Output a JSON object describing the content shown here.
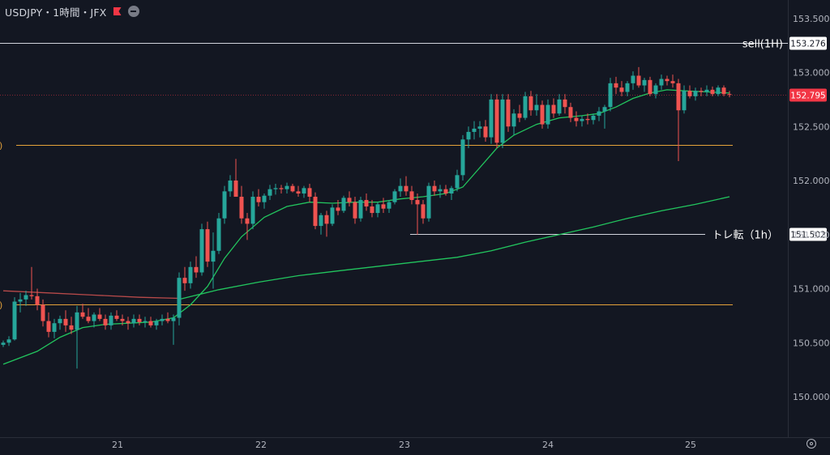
{
  "header": {
    "symbol": "USDJPY・1時間・JFX"
  },
  "colors": {
    "background": "#131722",
    "up": "#26a69a",
    "down": "#ef5350",
    "ma_fast": "#22c55e",
    "ma_slow": "#22c55e",
    "ma_red": "#b84a4a",
    "orange_line": "#e5a23a",
    "white_line": "#d1d4dc",
    "price_label": "#f23645"
  },
  "chart_data": {
    "type": "candlestick",
    "x_axis": {
      "ticks": [
        "21",
        "22",
        "23",
        "24",
        "25"
      ]
    },
    "y_axis": {
      "range": [
        149.55,
        153.7
      ],
      "ticks": [
        "153.500",
        "153.000",
        "152.500",
        "152.000",
        "151.500",
        "151.000",
        "150.500",
        "150.000"
      ]
    },
    "current_price": 152.795,
    "current_price_label": "152.795",
    "levels": [
      {
        "name": "sell(1H)",
        "price": 153.276,
        "label": "153.276",
        "color": "white"
      },
      {
        "name": "トレ転（1h）",
        "price": 151.502,
        "label": "151.502",
        "color": "white"
      },
      {
        "name": "",
        "price": 152.33,
        "label": "",
        "color": "orange"
      },
      {
        "name": "",
        "price": 150.855,
        "label": "",
        "color": "orange"
      }
    ],
    "candles": [
      [
        150.48,
        150.52,
        150.46,
        150.5
      ],
      [
        150.5,
        150.56,
        150.47,
        150.53
      ],
      [
        150.53,
        150.92,
        150.52,
        150.88
      ],
      [
        150.88,
        150.96,
        150.78,
        150.9
      ],
      [
        150.9,
        150.98,
        150.84,
        150.94
      ],
      [
        150.94,
        151.2,
        150.9,
        150.93
      ],
      [
        150.93,
        151.0,
        150.8,
        150.85
      ],
      [
        150.85,
        150.9,
        150.65,
        150.7
      ],
      [
        150.7,
        150.78,
        150.55,
        150.6
      ],
      [
        150.6,
        150.72,
        150.54,
        150.68
      ],
      [
        150.68,
        150.75,
        150.62,
        150.72
      ],
      [
        150.72,
        150.8,
        150.6,
        150.66
      ],
      [
        150.66,
        150.74,
        150.58,
        150.62
      ],
      [
        150.62,
        150.84,
        150.26,
        150.78
      ],
      [
        150.78,
        150.86,
        150.72,
        150.74
      ],
      [
        150.74,
        150.82,
        150.68,
        150.7
      ],
      [
        150.7,
        150.78,
        150.64,
        150.76
      ],
      [
        150.76,
        150.82,
        150.7,
        150.72
      ],
      [
        150.72,
        150.76,
        150.62,
        150.66
      ],
      [
        150.66,
        150.78,
        150.62,
        150.75
      ],
      [
        150.75,
        150.8,
        150.7,
        150.72
      ],
      [
        150.72,
        150.76,
        150.66,
        150.7
      ],
      [
        150.7,
        150.74,
        150.62,
        150.68
      ],
      [
        150.68,
        150.76,
        150.64,
        150.72
      ],
      [
        150.72,
        150.76,
        150.66,
        150.69
      ],
      [
        150.69,
        150.74,
        150.64,
        150.7
      ],
      [
        150.7,
        150.74,
        150.64,
        150.66
      ],
      [
        150.66,
        150.72,
        150.62,
        150.7
      ],
      [
        150.7,
        150.76,
        150.66,
        150.72
      ],
      [
        150.72,
        150.78,
        150.68,
        150.7
      ],
      [
        150.7,
        150.76,
        150.48,
        150.73
      ],
      [
        150.73,
        151.15,
        150.66,
        151.1
      ],
      [
        151.1,
        151.2,
        150.98,
        151.05
      ],
      [
        151.05,
        151.25,
        151.0,
        151.2
      ],
      [
        151.2,
        151.3,
        151.1,
        151.15
      ],
      [
        151.15,
        151.6,
        151.12,
        151.55
      ],
      [
        151.55,
        151.62,
        151.2,
        151.25
      ],
      [
        151.25,
        151.52,
        151.0,
        151.35
      ],
      [
        151.35,
        151.7,
        151.32,
        151.65
      ],
      [
        151.65,
        151.95,
        151.6,
        151.9
      ],
      [
        151.9,
        152.05,
        151.85,
        152.0
      ],
      [
        152.0,
        152.2,
        151.85,
        151.85
      ],
      [
        151.85,
        151.95,
        151.6,
        151.65
      ],
      [
        151.65,
        151.7,
        151.45,
        151.6
      ],
      [
        151.6,
        151.9,
        151.55,
        151.85
      ],
      [
        151.85,
        151.92,
        151.76,
        151.8
      ],
      [
        151.8,
        151.88,
        151.74,
        151.86
      ],
      [
        151.86,
        151.96,
        151.82,
        151.92
      ],
      [
        151.92,
        151.97,
        151.87,
        151.93
      ],
      [
        151.93,
        151.96,
        151.88,
        151.92
      ],
      [
        151.92,
        151.98,
        151.88,
        151.95
      ],
      [
        151.95,
        151.97,
        151.89,
        151.9
      ],
      [
        151.9,
        151.95,
        151.85,
        151.88
      ],
      [
        151.88,
        151.95,
        151.84,
        151.93
      ],
      [
        151.93,
        151.97,
        151.8,
        151.85
      ],
      [
        151.85,
        151.89,
        151.55,
        151.58
      ],
      [
        151.58,
        151.7,
        151.5,
        151.68
      ],
      [
        151.68,
        151.72,
        151.48,
        151.6
      ],
      [
        151.6,
        151.78,
        151.58,
        151.75
      ],
      [
        151.75,
        151.82,
        151.68,
        151.72
      ],
      [
        151.72,
        151.86,
        151.7,
        151.84
      ],
      [
        151.84,
        151.9,
        151.76,
        151.8
      ],
      [
        151.8,
        151.85,
        151.6,
        151.65
      ],
      [
        151.65,
        151.85,
        151.62,
        151.82
      ],
      [
        151.82,
        151.88,
        151.72,
        151.76
      ],
      [
        151.76,
        151.82,
        151.66,
        151.7
      ],
      [
        151.7,
        151.8,
        151.66,
        151.78
      ],
      [
        151.78,
        151.84,
        151.7,
        151.74
      ],
      [
        151.74,
        151.82,
        151.7,
        151.8
      ],
      [
        151.8,
        151.92,
        151.78,
        151.9
      ],
      [
        151.9,
        152.02,
        151.85,
        151.95
      ],
      [
        151.95,
        152.04,
        151.86,
        151.9
      ],
      [
        151.9,
        151.95,
        151.78,
        151.82
      ],
      [
        151.82,
        151.88,
        151.5,
        151.78
      ],
      [
        151.78,
        151.82,
        151.6,
        151.65
      ],
      [
        151.65,
        151.98,
        151.62,
        151.95
      ],
      [
        151.95,
        152.0,
        151.86,
        151.9
      ],
      [
        151.9,
        151.96,
        151.84,
        151.92
      ],
      [
        151.92,
        151.96,
        151.86,
        151.88
      ],
      [
        151.88,
        151.95,
        151.82,
        151.93
      ],
      [
        151.93,
        152.1,
        151.9,
        152.05
      ],
      [
        152.05,
        152.42,
        152.0,
        152.38
      ],
      [
        152.38,
        152.5,
        152.3,
        152.45
      ],
      [
        152.45,
        152.55,
        152.38,
        152.48
      ],
      [
        152.48,
        152.55,
        152.4,
        152.5
      ],
      [
        152.5,
        152.56,
        152.36,
        152.4
      ],
      [
        152.4,
        152.8,
        152.34,
        152.75
      ],
      [
        152.75,
        152.8,
        152.3,
        152.35
      ],
      [
        152.35,
        152.8,
        152.3,
        152.75
      ],
      [
        152.75,
        152.8,
        152.45,
        152.5
      ],
      [
        152.5,
        152.66,
        152.42,
        152.62
      ],
      [
        152.62,
        152.7,
        152.54,
        152.58
      ],
      [
        152.58,
        152.82,
        152.56,
        152.78
      ],
      [
        152.78,
        152.83,
        152.6,
        152.65
      ],
      [
        152.65,
        152.8,
        152.6,
        152.7
      ],
      [
        152.7,
        152.74,
        152.48,
        152.52
      ],
      [
        152.52,
        152.75,
        152.48,
        152.7
      ],
      [
        152.7,
        152.76,
        152.58,
        152.62
      ],
      [
        152.62,
        152.8,
        152.6,
        152.75
      ],
      [
        152.75,
        152.8,
        152.62,
        152.68
      ],
      [
        152.68,
        152.72,
        152.54,
        152.58
      ],
      [
        152.58,
        152.64,
        152.5,
        152.55
      ],
      [
        152.55,
        152.6,
        152.5,
        152.57
      ],
      [
        152.57,
        152.62,
        152.52,
        152.56
      ],
      [
        152.56,
        152.62,
        152.52,
        152.6
      ],
      [
        152.6,
        152.68,
        152.55,
        152.64
      ],
      [
        152.64,
        152.7,
        152.48,
        152.68
      ],
      [
        152.68,
        152.95,
        152.64,
        152.9
      ],
      [
        152.9,
        152.96,
        152.8,
        152.86
      ],
      [
        152.86,
        152.92,
        152.78,
        152.82
      ],
      [
        152.82,
        152.92,
        152.78,
        152.9
      ],
      [
        152.9,
        153.01,
        152.84,
        152.97
      ],
      [
        152.97,
        153.05,
        152.86,
        152.88
      ],
      [
        152.88,
        152.95,
        152.82,
        152.93
      ],
      [
        152.93,
        152.96,
        152.78,
        152.8
      ],
      [
        152.8,
        152.9,
        152.76,
        152.88
      ],
      [
        152.88,
        152.98,
        152.84,
        152.94
      ],
      [
        152.94,
        152.97,
        152.88,
        152.92
      ],
      [
        152.92,
        152.98,
        152.86,
        152.9
      ],
      [
        152.9,
        152.94,
        152.18,
        152.65
      ],
      [
        152.65,
        152.88,
        152.62,
        152.83
      ],
      [
        152.83,
        152.88,
        152.76,
        152.78
      ],
      [
        152.78,
        152.86,
        152.74,
        152.83
      ],
      [
        152.83,
        152.86,
        152.78,
        152.82
      ],
      [
        152.82,
        152.88,
        152.78,
        152.84
      ],
      [
        152.84,
        152.87,
        152.78,
        152.8
      ],
      [
        152.8,
        152.88,
        152.78,
        152.86
      ],
      [
        152.86,
        152.88,
        152.78,
        152.8
      ],
      [
        152.8,
        152.83,
        152.77,
        152.795
      ]
    ],
    "ma_fast": [
      [
        0,
        150.3
      ],
      [
        6,
        150.42
      ],
      [
        10,
        150.55
      ],
      [
        14,
        150.64
      ],
      [
        18,
        150.67
      ],
      [
        22,
        150.68
      ],
      [
        26,
        150.69
      ],
      [
        30,
        150.73
      ],
      [
        33,
        150.85
      ],
      [
        36,
        151.02
      ],
      [
        39,
        151.28
      ],
      [
        42,
        151.48
      ],
      [
        46,
        151.66
      ],
      [
        50,
        151.76
      ],
      [
        54,
        151.8
      ],
      [
        58,
        151.79
      ],
      [
        62,
        151.8
      ],
      [
        66,
        151.8
      ],
      [
        70,
        151.83
      ],
      [
        74,
        151.85
      ],
      [
        78,
        151.88
      ],
      [
        81,
        151.94
      ],
      [
        84,
        152.12
      ],
      [
        87,
        152.3
      ],
      [
        90,
        152.42
      ],
      [
        94,
        152.52
      ],
      [
        98,
        152.58
      ],
      [
        102,
        152.6
      ],
      [
        105,
        152.62
      ],
      [
        108,
        152.68
      ],
      [
        111,
        152.76
      ],
      [
        114,
        152.81
      ],
      [
        117,
        152.84
      ],
      [
        120,
        152.83
      ],
      [
        124,
        152.82
      ],
      [
        128,
        152.81
      ]
    ],
    "ma_slow": [
      [
        31,
        150.9
      ],
      [
        38,
        150.99
      ],
      [
        45,
        151.06
      ],
      [
        52,
        151.12
      ],
      [
        60,
        151.17
      ],
      [
        70,
        151.23
      ],
      [
        80,
        151.29
      ],
      [
        86,
        151.35
      ],
      [
        92,
        151.43
      ],
      [
        98,
        151.5
      ],
      [
        104,
        151.57
      ],
      [
        110,
        151.65
      ],
      [
        116,
        151.72
      ],
      [
        122,
        151.78
      ],
      [
        128,
        151.85
      ]
    ],
    "ma_red": [
      [
        0,
        150.98
      ],
      [
        8,
        150.96
      ],
      [
        16,
        150.94
      ],
      [
        24,
        150.92
      ],
      [
        31,
        150.91
      ]
    ]
  }
}
